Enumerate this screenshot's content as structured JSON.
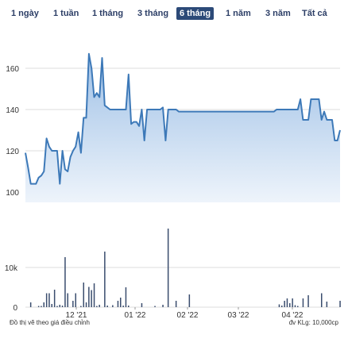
{
  "tabs": [
    {
      "label": "1 ngày",
      "active": false
    },
    {
      "label": "1 tuần",
      "active": false
    },
    {
      "label": "1 tháng",
      "active": false
    },
    {
      "label": "3 tháng",
      "active": false
    },
    {
      "label": "6 tháng",
      "active": true
    },
    {
      "label": "1 năm",
      "active": false
    },
    {
      "label": "3 năm",
      "active": false
    },
    {
      "label": "Tất cả",
      "active": false
    }
  ],
  "footer": {
    "note": "Đồ thị vẽ theo giá điều chỉnh",
    "unit": "đv KLg: 10,000cp"
  },
  "colors": {
    "line": "#3d79b8",
    "area_top": "#9ec0e6",
    "area_bottom": "#eef4fb",
    "bars": "#3a4d6e",
    "grid": "#dddddd",
    "tab_active": "#2c4a78"
  },
  "chart_data": [
    {
      "type": "area",
      "ylim": [
        95,
        170
      ],
      "yticks": [
        100,
        120,
        140,
        160
      ],
      "xticks": [
        "12 '21",
        "01 '22",
        "02 '22",
        "03 '22",
        "04 '22"
      ],
      "x": [
        0,
        1,
        2,
        3,
        4,
        5,
        6,
        7,
        8,
        9,
        10,
        11,
        12,
        13,
        14,
        15,
        16,
        17,
        18,
        19,
        20,
        21,
        22,
        23,
        24,
        25,
        26,
        27,
        28,
        29,
        30,
        31,
        32,
        33,
        34,
        35,
        36,
        37,
        38,
        39,
        40,
        41,
        42,
        43,
        44,
        45,
        46,
        47,
        48,
        49,
        50,
        51,
        52,
        53,
        54,
        55,
        56,
        57,
        58,
        59,
        60,
        61,
        62,
        63,
        64,
        65,
        66,
        67,
        68,
        69,
        70,
        71,
        72,
        73,
        74,
        75,
        76,
        77,
        78,
        79,
        80,
        81,
        82,
        83,
        84,
        85,
        86,
        87,
        88,
        89,
        90,
        91,
        92,
        93,
        94,
        95,
        96,
        97,
        98,
        99,
        100,
        101,
        102,
        103,
        104,
        105,
        106,
        107,
        108,
        109,
        110,
        111,
        112,
        113,
        114,
        115,
        116,
        117,
        118,
        119
      ],
      "values": [
        119,
        112,
        104,
        104,
        104,
        107,
        108,
        110,
        126,
        122,
        120,
        120,
        120,
        104,
        120,
        111,
        110,
        117,
        120,
        122,
        129,
        119,
        136,
        136,
        167,
        160,
        146,
        148,
        146,
        165,
        142,
        141,
        140,
        140,
        140,
        140,
        140,
        140,
        140,
        157,
        133,
        134,
        134,
        132,
        140,
        125,
        140,
        140,
        140,
        140,
        140,
        140,
        141,
        125,
        140,
        140,
        140,
        140,
        139,
        139,
        139,
        139,
        139,
        139,
        139,
        139,
        139,
        139,
        139,
        139,
        139,
        139,
        139,
        139,
        139,
        139,
        139,
        139,
        139,
        139,
        139,
        139,
        139,
        139,
        139,
        139,
        139,
        139,
        139,
        139,
        139,
        139,
        139,
        139,
        139,
        140,
        140,
        140,
        140,
        140,
        140,
        140,
        140,
        140,
        145,
        135,
        135,
        135,
        145,
        145,
        145,
        145,
        135,
        139,
        135,
        135,
        135,
        125,
        125,
        130
      ]
    },
    {
      "type": "bar",
      "ylim": [
        0,
        19
      ],
      "yticks": [
        0,
        10
      ],
      "ytick_labels": [
        "0",
        "10k"
      ],
      "values": [
        0,
        0,
        1.2,
        0,
        0,
        0.3,
        0.3,
        1.2,
        3.5,
        3.5,
        0.8,
        4.4,
        0.3,
        0.6,
        0.4,
        12.6,
        3.5,
        0,
        1.6,
        3.5,
        0,
        0.3,
        6.2,
        1.2,
        5.1,
        4.3,
        6.0,
        0.3,
        0.6,
        0,
        14.0,
        0.4,
        0,
        0.5,
        0,
        1.6,
        2.4,
        0.4,
        5.0,
        0.4,
        0,
        0,
        0,
        0,
        1.0,
        0,
        0,
        0,
        0,
        0.3,
        0,
        0,
        0.6,
        0,
        19.8,
        0,
        0,
        1.6,
        0,
        0,
        0,
        0,
        3.2,
        0,
        0,
        0,
        0,
        0,
        0,
        0,
        0,
        0,
        0,
        0,
        0,
        0,
        0,
        0,
        0,
        0,
        0,
        0,
        0,
        0,
        0,
        0,
        0,
        0,
        0,
        0,
        0,
        0,
        0,
        0,
        0,
        0,
        0.7,
        0.4,
        1.6,
        2.2,
        1.0,
        2.2,
        0.5,
        0.3,
        0,
        2.2,
        0,
        3.0,
        0,
        0,
        0,
        0,
        3.5,
        0,
        1.4,
        0,
        0,
        0,
        0,
        1.6
      ]
    }
  ]
}
